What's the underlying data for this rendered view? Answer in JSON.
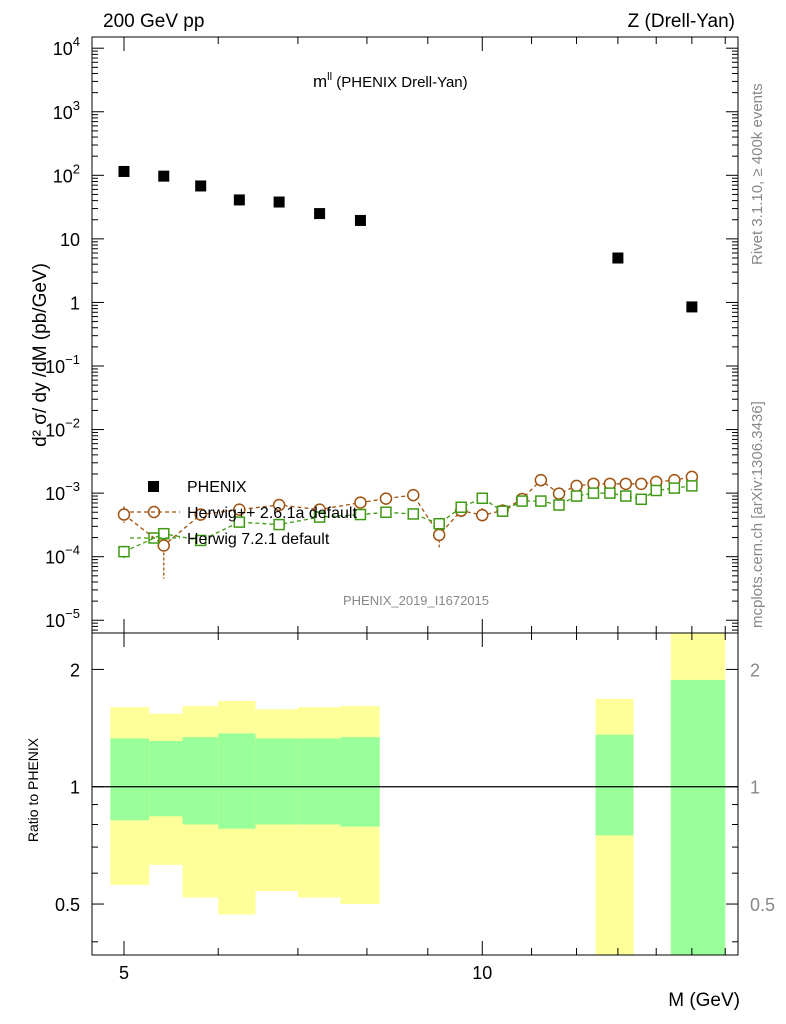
{
  "header": {
    "left": "200 GeV pp",
    "right": "Z (Drell-Yan)"
  },
  "plot_title": {
    "main": "m",
    "sup": "ll",
    "rest": " (PHENIX Drell-Yan)"
  },
  "side_labels": {
    "rivet": "Rivet 3.1.10, ≥ 400k events",
    "mcplots": "mcplots.cern.ch [arXiv:1306.3436]"
  },
  "analysis_id": "PHENIX_2019_I1672015",
  "axis_labels": {
    "ylabel_top": "d² σ/ dy /dM (pb/GeV)",
    "ylabel_ratio": "Ratio to PHENIX",
    "xlabel": "M (GeV)"
  },
  "legend": {
    "data": "PHENIX",
    "mc1": "Herwig++ 2.6.1a default",
    "mc2": "Herwig 7.2.1 default"
  },
  "colors": {
    "data": "#000000",
    "mc1": "#a0520f",
    "mc2": "#3f9a13",
    "band_inner": "#99ff99",
    "band_outer": "#ffff99"
  },
  "chart_data": [
    {
      "type": "scatter",
      "name": "main",
      "yscale": "log",
      "xlim": [
        4.7,
        16.4
      ],
      "ylim": [
        6.3e-06,
        15000
      ],
      "x_ticks": [
        {
          "v": 5,
          "label": "5"
        },
        {
          "v": 10,
          "label": "10"
        }
      ],
      "y_ticks": [
        {
          "v": 1e-05,
          "base": "10",
          "exp": "−5"
        },
        {
          "v": 0.0001,
          "base": "10",
          "exp": "−4"
        },
        {
          "v": 0.001,
          "base": "10",
          "exp": "−3"
        },
        {
          "v": 0.01,
          "base": "10",
          "exp": "−2"
        },
        {
          "v": 0.1,
          "base": "10",
          "exp": "−1"
        },
        {
          "v": 1,
          "base": "1",
          "exp": ""
        },
        {
          "v": 10,
          "base": "10",
          "exp": ""
        },
        {
          "v": 100,
          "base": "10",
          "exp": "2"
        },
        {
          "v": 1000,
          "base": "10",
          "exp": "3"
        },
        {
          "v": 10000,
          "base": "10",
          "exp": "4"
        }
      ],
      "series": [
        {
          "name": "PHENIX",
          "x": [
            5.0,
            5.4,
            5.8,
            6.25,
            6.75,
            7.3,
            7.9,
            13.0,
            15.0
          ],
          "y": [
            115,
            97,
            68,
            41,
            38,
            25,
            19.5,
            5.0,
            0.85
          ]
        },
        {
          "name": "Herwig++ 2.6.1a default",
          "x": [
            5.0,
            5.4,
            5.8,
            6.25,
            6.75,
            7.3,
            7.9,
            8.3,
            8.75,
            9.2,
            9.6,
            10.0,
            10.4,
            10.8,
            11.2,
            11.6,
            12.0,
            12.4,
            12.8,
            13.2,
            13.6,
            14.0,
            14.5,
            15.0
          ],
          "y": [
            0.00046,
            0.00015,
            0.00046,
            0.00055,
            0.00065,
            0.00055,
            0.00071,
            0.00082,
            0.00093,
            0.00022,
            0.00053,
            0.00045,
            0.00053,
            0.00081,
            0.0016,
            0.00098,
            0.0013,
            0.0014,
            0.0014,
            0.0014,
            0.0014,
            0.0015,
            0.0016,
            0.0018
          ],
          "err_hi": [
            0.00062,
            0.00024,
            0.00055,
            0.00066,
            0.00078,
            0.00066,
            0.00085,
            0.001,
            0.0011,
            0.00032,
            0.00066,
            0.00058,
            0.00062,
            0.00092,
            0.0018,
            0.0011,
            0.0014,
            0.0015,
            0.0015,
            0.0015,
            0.0015,
            0.0016,
            0.0017,
            0.0019
          ],
          "err_lo": [
            0.00034,
            4.5e-05,
            0.00038,
            0.00045,
            0.00054,
            0.00046,
            0.0006,
            0.00068,
            0.00078,
            0.00014,
            0.00042,
            0.00034,
            0.00045,
            0.00071,
            0.0014,
            0.00088,
            0.0012,
            0.0013,
            0.0013,
            0.0013,
            0.0013,
            0.0014,
            0.0015,
            0.0017
          ]
        },
        {
          "name": "Herwig 7.2.1 default",
          "x": [
            5.0,
            5.4,
            5.8,
            6.25,
            6.75,
            7.3,
            7.9,
            8.3,
            8.75,
            9.2,
            9.6,
            10.0,
            10.4,
            10.8,
            11.2,
            11.6,
            12.0,
            12.4,
            12.8,
            13.2,
            13.6,
            14.0,
            14.5,
            15.0
          ],
          "y": [
            0.00012,
            0.00023,
            0.00018,
            0.00035,
            0.00032,
            0.00042,
            0.00046,
            0.0005,
            0.00047,
            0.00033,
            0.0006,
            0.00083,
            0.00052,
            0.00075,
            0.00075,
            0.00065,
            0.0009,
            0.001,
            0.001,
            0.0009,
            0.0008,
            0.0011,
            0.0012,
            0.0013
          ],
          "err_hi": [
            0.00015,
            0.00028,
            0.00022,
            0.0004,
            0.00038,
            0.00048,
            0.00052,
            0.00056,
            0.00054,
            0.00039,
            0.00067,
            0.00092,
            0.00058,
            0.00083,
            0.00082,
            0.00072,
            0.00098,
            0.0011,
            0.0011,
            0.00098,
            0.00088,
            0.0012,
            0.0013,
            0.0014
          ],
          "err_lo": [
            9.5e-05,
            0.00018,
            0.00015,
            0.0003,
            0.00027,
            0.00036,
            0.0004,
            0.00044,
            0.0004,
            0.00027,
            0.00053,
            0.00074,
            0.00046,
            0.00068,
            0.00068,
            0.00058,
            0.00082,
            0.00092,
            0.00092,
            0.00082,
            0.00072,
            0.001,
            0.0011,
            0.0012
          ]
        }
      ]
    },
    {
      "type": "area",
      "name": "ratio",
      "yscale": "log",
      "xlim": [
        4.7,
        16.4
      ],
      "ylim": [
        0.37,
        2.48
      ],
      "y_ticks": [
        {
          "v": 0.5,
          "label": "0.5"
        },
        {
          "v": 1,
          "label": "1"
        },
        {
          "v": 2,
          "label": "2"
        }
      ],
      "reference": 1,
      "bins": [
        {
          "x0": 4.87,
          "x1": 5.25,
          "inner": [
            0.82,
            1.33
          ],
          "outer": [
            0.56,
            1.6
          ]
        },
        {
          "x0": 5.25,
          "x1": 5.6,
          "inner": [
            0.84,
            1.31
          ],
          "outer": [
            0.63,
            1.54
          ]
        },
        {
          "x0": 5.6,
          "x1": 6.0,
          "inner": [
            0.8,
            1.34
          ],
          "outer": [
            0.52,
            1.61
          ]
        },
        {
          "x0": 6.0,
          "x1": 6.45,
          "inner": [
            0.78,
            1.37
          ],
          "outer": [
            0.47,
            1.66
          ]
        },
        {
          "x0": 6.45,
          "x1": 7.0,
          "inner": [
            0.8,
            1.33
          ],
          "outer": [
            0.54,
            1.58
          ]
        },
        {
          "x0": 7.0,
          "x1": 7.6,
          "inner": [
            0.8,
            1.33
          ],
          "outer": [
            0.52,
            1.6
          ]
        },
        {
          "x0": 7.6,
          "x1": 8.2,
          "inner": [
            0.79,
            1.34
          ],
          "outer": [
            0.5,
            1.61
          ]
        },
        {
          "x0": 12.45,
          "x1": 13.4,
          "inner": [
            0.75,
            1.36
          ],
          "outer": [
            0.37,
            1.68
          ]
        },
        {
          "x0": 14.4,
          "x1": 16.0,
          "inner": [
            0.37,
            1.88
          ],
          "outer": [
            0.37,
            2.48
          ]
        }
      ]
    }
  ]
}
